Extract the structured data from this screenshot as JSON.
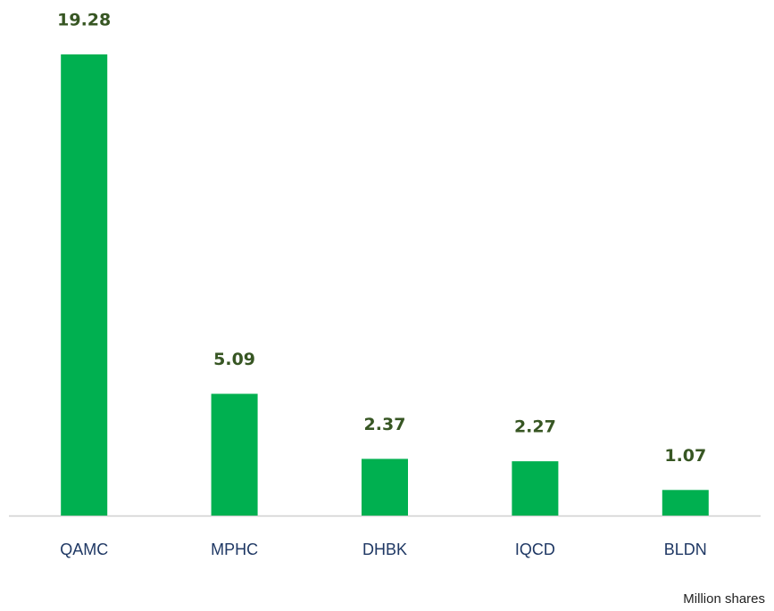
{
  "chart_data": {
    "type": "bar",
    "categories": [
      "QAMC",
      "MPHC",
      "DHBK",
      "IQCD",
      "BLDN"
    ],
    "values": [
      19.28,
      5.09,
      2.37,
      2.27,
      1.07
    ],
    "color": "#00b050",
    "unit_label": "Million shares"
  }
}
